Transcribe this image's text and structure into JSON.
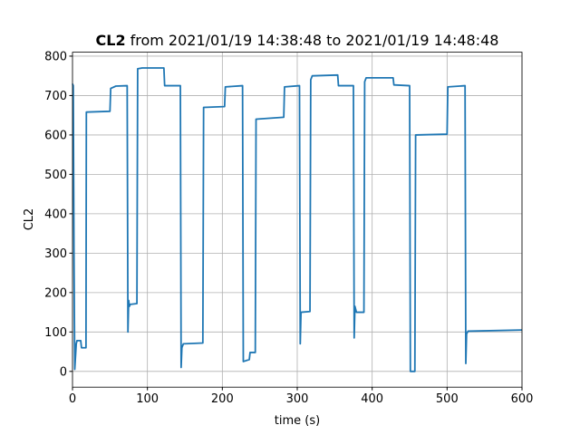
{
  "chart_data": {
    "type": "line",
    "title": {
      "bold": "CL2",
      "text": "from 2021/01/19 14:38:48 to 2021/01/19 14:48:48"
    },
    "xlabel": "time (s)",
    "ylabel": "CL2",
    "x": [
      0,
      1,
      2,
      3,
      5,
      6,
      11,
      12,
      18,
      18.5,
      50,
      51,
      58,
      73,
      74,
      75,
      76,
      77,
      86,
      87,
      93,
      122,
      123,
      144,
      145,
      146,
      148,
      174,
      175,
      203,
      204,
      227,
      228,
      236,
      237,
      244,
      245,
      282,
      283,
      303,
      304,
      305,
      317,
      318,
      320,
      354,
      355,
      375,
      376,
      377,
      379,
      389,
      390,
      392,
      428,
      429,
      450,
      451,
      457,
      458,
      500,
      501,
      524,
      525,
      526,
      528,
      600
    ],
    "series": [
      {
        "name": "CL2",
        "color": "#1f77b4",
        "values": [
          730,
          725,
          300,
          5,
          70,
          78,
          78,
          60,
          60,
          658,
          660,
          718,
          724,
          725,
          100,
          180,
          165,
          170,
          172,
          768,
          770,
          770,
          725,
          725,
          10,
          60,
          70,
          72,
          670,
          672,
          722,
          725,
          25,
          30,
          48,
          48,
          640,
          645,
          722,
          725,
          70,
          150,
          152,
          740,
          750,
          752,
          725,
          725,
          85,
          165,
          150,
          150,
          735,
          745,
          745,
          727,
          725,
          0,
          0,
          600,
          602,
          722,
          725,
          20,
          95,
          102,
          105
        ]
      }
    ],
    "xlim": [
      0,
      600
    ],
    "ylim": [
      -40,
      810
    ],
    "xticks": [
      0,
      100,
      200,
      300,
      400,
      500,
      600
    ],
    "yticks": [
      0,
      100,
      200,
      300,
      400,
      500,
      600,
      700,
      800
    ],
    "grid": true
  }
}
